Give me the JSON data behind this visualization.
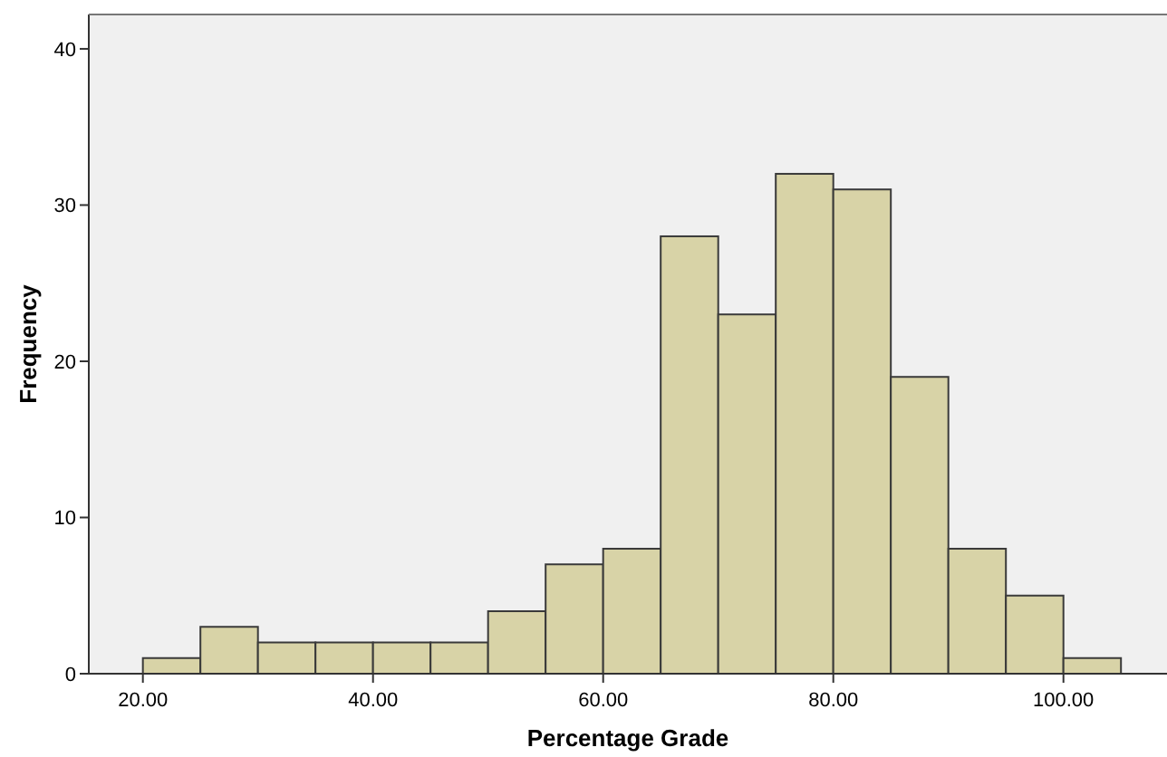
{
  "chart_data": {
    "type": "histogram",
    "xlabel": "Percentage Grade",
    "ylabel": "Frequency",
    "bins": [
      20,
      25,
      30,
      35,
      40,
      45,
      50,
      55,
      60,
      65,
      70,
      75,
      80,
      85,
      90,
      95,
      100,
      105
    ],
    "values": [
      1,
      3,
      2,
      2,
      2,
      2,
      4,
      7,
      8,
      28,
      23,
      32,
      31,
      19,
      8,
      5,
      1
    ],
    "color": "#d8d3a7",
    "xlim": [
      15.3,
      109
    ],
    "ylim": [
      0,
      42.2
    ],
    "xticks": [
      {
        "value": 20,
        "label": "20.00"
      },
      {
        "value": 40,
        "label": "40.00"
      },
      {
        "value": 60,
        "label": "60.00"
      },
      {
        "value": 80,
        "label": "80.00"
      },
      {
        "value": 100,
        "label": "100.00"
      }
    ],
    "yticks": [
      0,
      10,
      20,
      30,
      40
    ],
    "grid": false
  }
}
